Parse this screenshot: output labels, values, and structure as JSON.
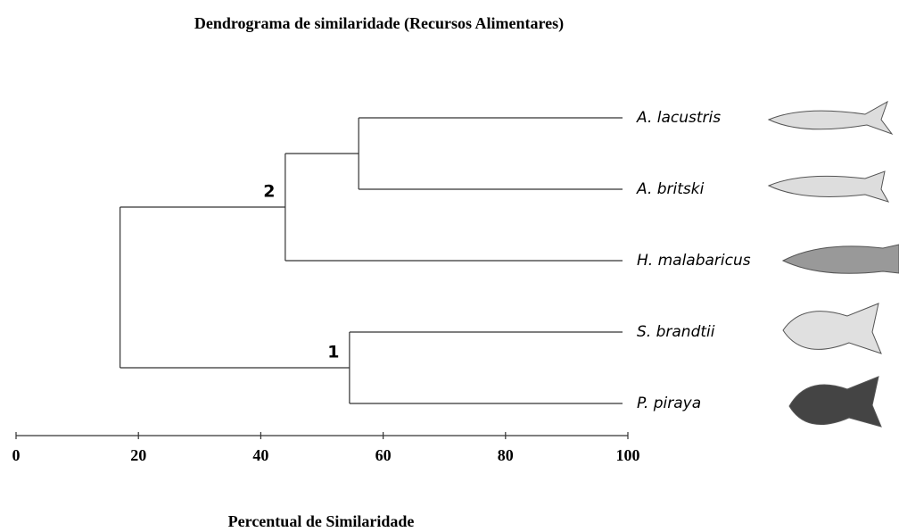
{
  "chart_data": {
    "type": "dendrogram",
    "title": "Dendrograma de similaridade (Recursos Alimentares)",
    "xlabel": "Percentual de Similaridade",
    "xlim": [
      0,
      100
    ],
    "xticks": [
      0,
      20,
      40,
      60,
      80,
      100
    ],
    "tree": {
      "value": 17,
      "children": [
        {
          "value": 44,
          "label": "2",
          "children": [
            {
              "value": 56,
              "children": [
                {
                  "name": "A. lacustris"
                },
                {
                  "name": "A. britski"
                }
              ]
            },
            {
              "name": "H. malabaricus"
            }
          ]
        },
        {
          "value": 54.5,
          "label": "1",
          "children": [
            {
              "name": "S. brandtii"
            },
            {
              "name": "P. piraya"
            }
          ]
        }
      ]
    }
  }
}
